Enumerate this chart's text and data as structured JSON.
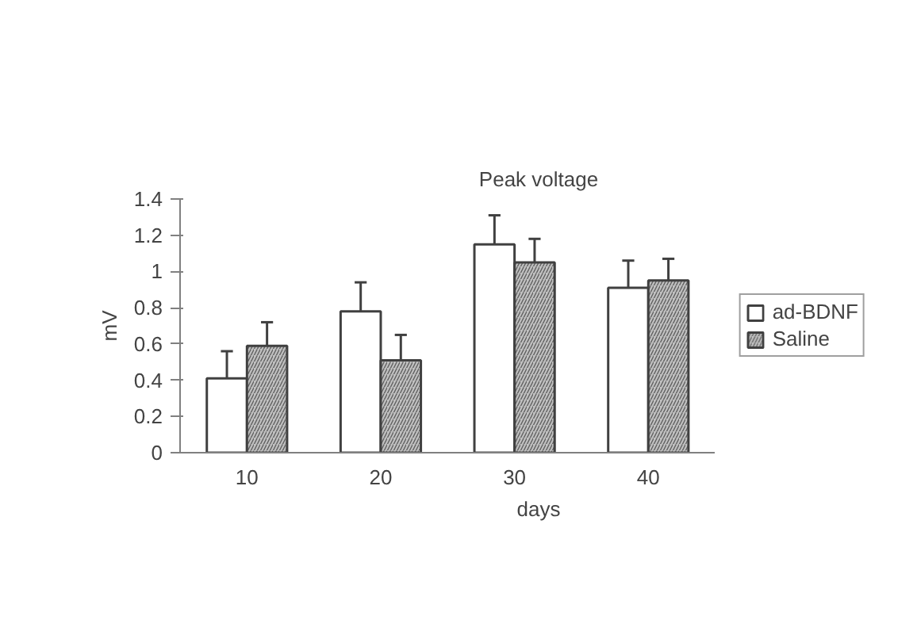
{
  "chart_data": {
    "type": "bar",
    "title": "Peak voltage",
    "xlabel": "days",
    "ylabel": "mV",
    "categories": [
      "10",
      "20",
      "30",
      "40"
    ],
    "series": [
      {
        "name": "ad-BDNF",
        "color": "#ffffff",
        "values": [
          0.41,
          0.78,
          1.15,
          0.91
        ],
        "errors": [
          [
            0.41,
            0.56
          ],
          [
            0.78,
            0.94
          ],
          [
            1.15,
            1.31
          ],
          [
            0.91,
            1.06
          ]
        ]
      },
      {
        "name": "Saline",
        "color": "#c0c0c0",
        "values": [
          0.59,
          0.51,
          1.05,
          0.95
        ],
        "errors": [
          [
            0.59,
            0.72
          ],
          [
            0.51,
            0.65
          ],
          [
            1.05,
            1.18
          ],
          [
            0.95,
            1.07
          ]
        ]
      }
    ],
    "ylim": [
      0,
      1.4
    ],
    "yticks": [
      0,
      0.2,
      0.4,
      0.6,
      0.8,
      1,
      1.2,
      1.4
    ],
    "legend": "right",
    "grid": false
  }
}
